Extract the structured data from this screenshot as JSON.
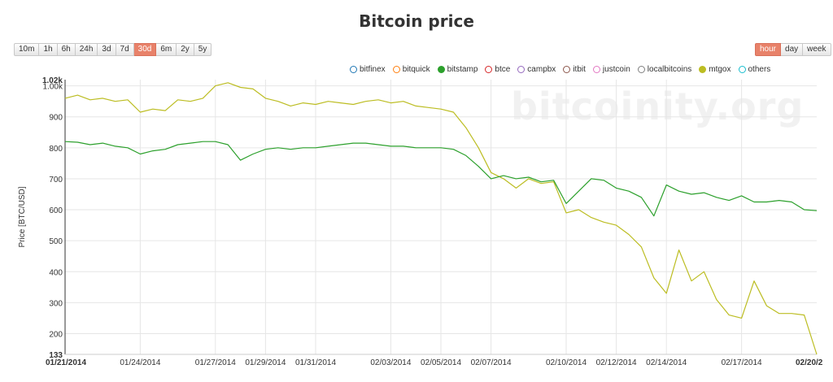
{
  "title": "Bitcoin price",
  "range_buttons": [
    {
      "label": "10m",
      "active": false
    },
    {
      "label": "1h",
      "active": false
    },
    {
      "label": "6h",
      "active": false
    },
    {
      "label": "24h",
      "active": false
    },
    {
      "label": "3d",
      "active": false
    },
    {
      "label": "7d",
      "active": false
    },
    {
      "label": "30d",
      "active": true
    },
    {
      "label": "6m",
      "active": false
    },
    {
      "label": "2y",
      "active": false
    },
    {
      "label": "5y",
      "active": false
    }
  ],
  "resolution_buttons": [
    {
      "label": "hour",
      "active": true
    },
    {
      "label": "day",
      "active": false
    },
    {
      "label": "week",
      "active": false
    }
  ],
  "watermark": "bitcoinity.org",
  "legend": [
    {
      "name": "bitfinex",
      "color": "#1f77b4",
      "filled": false
    },
    {
      "name": "bitquick",
      "color": "#ff7f0e",
      "filled": false
    },
    {
      "name": "bitstamp",
      "color": "#2ca02c",
      "filled": true
    },
    {
      "name": "btce",
      "color": "#d62728",
      "filled": false
    },
    {
      "name": "campbx",
      "color": "#9467bd",
      "filled": false
    },
    {
      "name": "itbit",
      "color": "#8c564b",
      "filled": false
    },
    {
      "name": "justcoin",
      "color": "#e377c2",
      "filled": false
    },
    {
      "name": "localbitcoins",
      "color": "#7f7f7f",
      "filled": false
    },
    {
      "name": "mtgox",
      "color": "#bcbd22",
      "filled": true
    },
    {
      "name": "others",
      "color": "#17becf",
      "filled": false
    }
  ],
  "chart_data": {
    "type": "line",
    "title": "Bitcoin price",
    "ylabel": "Price [BTC/USD]",
    "ylim": [
      133,
      1020
    ],
    "yticks": [
      {
        "label": "1.02k",
        "value": 1020,
        "bold": true
      },
      {
        "label": "1.00k",
        "value": 1000,
        "bold": false
      },
      {
        "label": "900",
        "value": 900,
        "bold": false
      },
      {
        "label": "800",
        "value": 800,
        "bold": false
      },
      {
        "label": "700",
        "value": 700,
        "bold": false
      },
      {
        "label": "600",
        "value": 600,
        "bold": false
      },
      {
        "label": "500",
        "value": 500,
        "bold": false
      },
      {
        "label": "400",
        "value": 400,
        "bold": false
      },
      {
        "label": "300",
        "value": 300,
        "bold": false
      },
      {
        "label": "200",
        "value": 200,
        "bold": false
      },
      {
        "label": "133",
        "value": 133,
        "bold": true
      }
    ],
    "xlim": [
      0,
      30
    ],
    "xticks": [
      {
        "label": "01/21/2014",
        "day": 0,
        "bold": true
      },
      {
        "label": "01/24/2014",
        "day": 3,
        "bold": false
      },
      {
        "label": "01/27/2014",
        "day": 6,
        "bold": false
      },
      {
        "label": "01/29/2014",
        "day": 8,
        "bold": false
      },
      {
        "label": "01/31/2014",
        "day": 10,
        "bold": false
      },
      {
        "label": "02/03/2014",
        "day": 13,
        "bold": false
      },
      {
        "label": "02/05/2014",
        "day": 15,
        "bold": false
      },
      {
        "label": "02/07/2014",
        "day": 17,
        "bold": false
      },
      {
        "label": "02/10/2014",
        "day": 20,
        "bold": false
      },
      {
        "label": "02/12/2014",
        "day": 22,
        "bold": false
      },
      {
        "label": "02/14/2014",
        "day": 24,
        "bold": false
      },
      {
        "label": "02/17/2014",
        "day": 27,
        "bold": false
      },
      {
        "label": "02/20/2",
        "day": 30,
        "bold": true
      }
    ],
    "grid": true,
    "series": [
      {
        "name": "mtgox",
        "color": "#bcbd22",
        "points": [
          [
            0,
            960
          ],
          [
            0.5,
            970
          ],
          [
            1,
            955
          ],
          [
            1.5,
            960
          ],
          [
            2,
            950
          ],
          [
            2.5,
            955
          ],
          [
            3,
            915
          ],
          [
            3.5,
            925
          ],
          [
            4,
            920
          ],
          [
            4.5,
            955
          ],
          [
            5,
            950
          ],
          [
            5.5,
            960
          ],
          [
            6,
            1000
          ],
          [
            6.5,
            1010
          ],
          [
            7,
            995
          ],
          [
            7.5,
            990
          ],
          [
            8,
            960
          ],
          [
            8.5,
            950
          ],
          [
            9,
            935
          ],
          [
            9.5,
            945
          ],
          [
            10,
            940
          ],
          [
            10.5,
            950
          ],
          [
            11,
            945
          ],
          [
            11.5,
            940
          ],
          [
            12,
            950
          ],
          [
            12.5,
            955
          ],
          [
            13,
            945
          ],
          [
            13.5,
            950
          ],
          [
            14,
            935
          ],
          [
            14.5,
            930
          ],
          [
            15,
            925
          ],
          [
            15.5,
            915
          ],
          [
            16,
            865
          ],
          [
            16.5,
            800
          ],
          [
            17,
            720
          ],
          [
            17.5,
            700
          ],
          [
            18,
            670
          ],
          [
            18.5,
            700
          ],
          [
            19,
            685
          ],
          [
            19.5,
            690
          ],
          [
            20,
            590
          ],
          [
            20.5,
            600
          ],
          [
            21,
            575
          ],
          [
            21.5,
            560
          ],
          [
            22,
            550
          ],
          [
            22.5,
            520
          ],
          [
            23,
            480
          ],
          [
            23.5,
            380
          ],
          [
            24,
            330
          ],
          [
            24.5,
            470
          ],
          [
            25,
            370
          ],
          [
            25.5,
            400
          ],
          [
            26,
            310
          ],
          [
            26.5,
            260
          ],
          [
            27,
            250
          ],
          [
            27.5,
            370
          ],
          [
            28,
            290
          ],
          [
            28.5,
            265
          ],
          [
            29,
            265
          ],
          [
            29.5,
            260
          ],
          [
            30,
            133
          ]
        ]
      },
      {
        "name": "bitstamp",
        "color": "#2ca02c",
        "points": [
          [
            0,
            820
          ],
          [
            0.5,
            818
          ],
          [
            1,
            810
          ],
          [
            1.5,
            815
          ],
          [
            2,
            805
          ],
          [
            2.5,
            800
          ],
          [
            3,
            780
          ],
          [
            3.5,
            790
          ],
          [
            4,
            795
          ],
          [
            4.5,
            810
          ],
          [
            5,
            815
          ],
          [
            5.5,
            820
          ],
          [
            6,
            820
          ],
          [
            6.5,
            810
          ],
          [
            7,
            760
          ],
          [
            7.5,
            780
          ],
          [
            8,
            795
          ],
          [
            8.5,
            800
          ],
          [
            9,
            795
          ],
          [
            9.5,
            800
          ],
          [
            10,
            800
          ],
          [
            10.5,
            805
          ],
          [
            11,
            810
          ],
          [
            11.5,
            815
          ],
          [
            12,
            815
          ],
          [
            12.5,
            810
          ],
          [
            13,
            805
          ],
          [
            13.5,
            805
          ],
          [
            14,
            800
          ],
          [
            14.5,
            800
          ],
          [
            15,
            800
          ],
          [
            15.5,
            795
          ],
          [
            16,
            775
          ],
          [
            16.5,
            740
          ],
          [
            17,
            700
          ],
          [
            17.5,
            710
          ],
          [
            18,
            700
          ],
          [
            18.5,
            705
          ],
          [
            19,
            690
          ],
          [
            19.5,
            695
          ],
          [
            20,
            620
          ],
          [
            20.5,
            660
          ],
          [
            21,
            700
          ],
          [
            21.5,
            695
          ],
          [
            22,
            670
          ],
          [
            22.5,
            660
          ],
          [
            23,
            640
          ],
          [
            23.5,
            580
          ],
          [
            24,
            680
          ],
          [
            24.5,
            660
          ],
          [
            25,
            650
          ],
          [
            25.5,
            655
          ],
          [
            26,
            640
          ],
          [
            26.5,
            630
          ],
          [
            27,
            645
          ],
          [
            27.5,
            625
          ],
          [
            28,
            625
          ],
          [
            28.5,
            630
          ],
          [
            29,
            625
          ],
          [
            29.5,
            600
          ],
          [
            30,
            597
          ]
        ]
      }
    ]
  }
}
